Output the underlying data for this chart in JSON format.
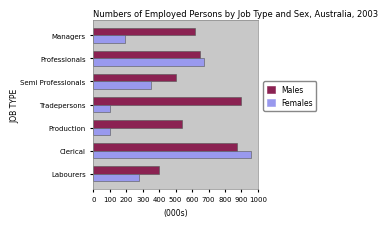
{
  "title": "Numbers of Employed Persons by Job Type and Sex, Australia, 2003",
  "categories": [
    "Managers",
    "Professionals",
    "Semi Professionals",
    "Tradepersons",
    "Production",
    "Clerical",
    "Labourers"
  ],
  "males": [
    620,
    650,
    500,
    900,
    540,
    870,
    400
  ],
  "females": [
    190,
    670,
    350,
    100,
    100,
    960,
    280
  ],
  "male_color": "#8B2252",
  "female_color": "#9999EE",
  "bg_color": "#C8C8C8",
  "fig_bg": "#FFFFFF",
  "xlabel": "(000s)",
  "ylabel": "JOB TYPE",
  "xlim": [
    0,
    1000
  ],
  "xticks": [
    0,
    100,
    200,
    300,
    400,
    500,
    600,
    700,
    800,
    900,
    1000
  ],
  "title_fontsize": 6.0,
  "label_fontsize": 5.5,
  "tick_fontsize": 5.0,
  "legend_fontsize": 5.5,
  "bar_height": 0.32
}
